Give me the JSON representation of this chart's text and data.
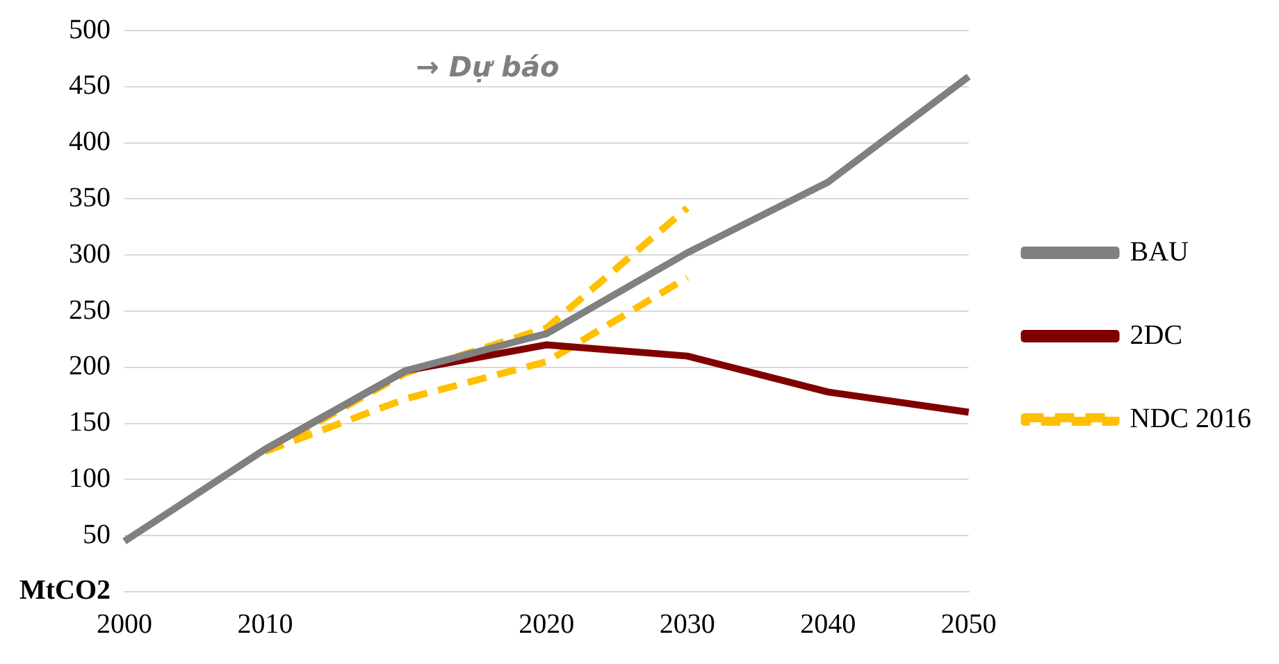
{
  "chart_data": {
    "type": "line",
    "categories": [
      "2000",
      "2010",
      null,
      "2020",
      "2030",
      "2040",
      "2050"
    ],
    "series": [
      {
        "name": "BAU",
        "color": "#808080",
        "values": [
          45,
          127,
          197,
          230,
          302,
          365,
          459
        ]
      },
      {
        "name": "2DC",
        "color": "#800000",
        "values": [
          null,
          127,
          197,
          220,
          210,
          178,
          160
        ]
      },
      {
        "name": "NDC 2016",
        "color": "#ffc000",
        "line_style": "dashed",
        "values": [
          null,
          125,
          195,
          235,
          342,
          null,
          null
        ]
      },
      {
        "color": "#ffc000",
        "line_style": "dashed",
        "values": [
          null,
          125,
          172,
          205,
          280,
          null,
          null
        ]
      }
    ],
    "ylim": [
      0,
      500
    ],
    "yticks": [
      {
        "value": 0,
        "label": "MtCO2"
      },
      50,
      100,
      150,
      200,
      250,
      300,
      350,
      400,
      450,
      500
    ],
    "grid": "y",
    "legend": "right",
    "marker": "none",
    "line_style": "solid",
    "annotations": [
      "→ Dự báo"
    ]
  }
}
